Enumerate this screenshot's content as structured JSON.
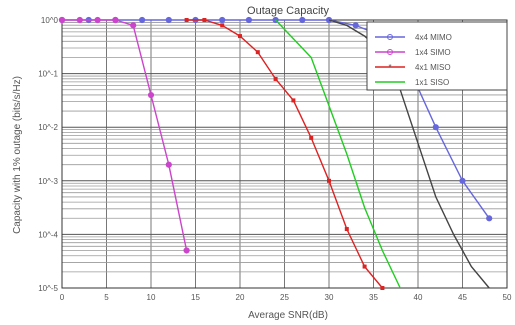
{
  "chart_data": {
    "type": "line",
    "title": "Outage Capacity",
    "xlabel": "Average SNR(dB)",
    "ylabel": "Capacity with 1% outage (bits/s/Hz)",
    "x_ticks": [
      "0",
      "5",
      "10",
      "15",
      "20",
      "25",
      "30",
      "35",
      "40",
      "45",
      "50"
    ],
    "y_ticks": [
      "10^0",
      "10^-1",
      "10^-2",
      "10^-3",
      "10^-4",
      "10^-5"
    ],
    "xlim": [
      0,
      50
    ],
    "ylim": [
      -5,
      0
    ],
    "y_scale": "log",
    "grid": true,
    "legend_position": "top-right",
    "series": [
      {
        "name": "4x4 MIMO",
        "color": "#6666dd",
        "marker": "o",
        "points": [
          [
            0,
            0
          ],
          [
            3,
            0
          ],
          [
            6,
            0
          ],
          [
            9,
            0
          ],
          [
            12,
            0
          ],
          [
            15,
            0
          ],
          [
            18,
            0
          ],
          [
            21,
            0
          ],
          [
            24,
            0
          ],
          [
            27,
            0
          ],
          [
            30,
            0
          ],
          [
            33,
            -0.1
          ],
          [
            36,
            -0.3
          ],
          [
            39,
            -0.9
          ],
          [
            42,
            -2.0
          ],
          [
            45,
            -3.0
          ],
          [
            48,
            -3.7
          ]
        ]
      },
      {
        "name": "1x4 SIMO",
        "color": "#cc44cc",
        "marker": "o",
        "points": [
          [
            0,
            0
          ],
          [
            2,
            0
          ],
          [
            4,
            0
          ],
          [
            6,
            0
          ],
          [
            8,
            -0.1
          ],
          [
            10,
            -1.4
          ],
          [
            12,
            -2.7
          ],
          [
            14,
            -4.3
          ]
        ]
      },
      {
        "name": "4x1 MISO",
        "color": "#dd2222",
        "marker": "*",
        "points": [
          [
            14,
            0
          ],
          [
            16,
            0
          ],
          [
            18,
            -0.1
          ],
          [
            20,
            -0.3
          ],
          [
            22,
            -0.6
          ],
          [
            24,
            -1.1
          ],
          [
            26,
            -1.5
          ],
          [
            28,
            -2.2
          ],
          [
            30,
            -3.0
          ],
          [
            32,
            -3.9
          ],
          [
            34,
            -4.6
          ],
          [
            36,
            -5.0
          ]
        ]
      },
      {
        "name": "1x1 SISO",
        "color": "#22cc22",
        "marker": "none",
        "points": [
          [
            24,
            0
          ],
          [
            28,
            -0.7
          ],
          [
            30,
            -1.6
          ],
          [
            32,
            -2.5
          ],
          [
            34,
            -3.5
          ],
          [
            36,
            -4.3
          ],
          [
            38,
            -5.0
          ]
        ]
      },
      {
        "name": "",
        "color": "#444444",
        "marker": "none",
        "points": [
          [
            30,
            0
          ],
          [
            32,
            -0.1
          ],
          [
            34,
            -0.3
          ],
          [
            36,
            -0.6
          ],
          [
            38,
            -1.3
          ],
          [
            40,
            -2.3
          ],
          [
            42,
            -3.3
          ],
          [
            44,
            -4.0
          ],
          [
            46,
            -4.6
          ],
          [
            48,
            -5.0
          ]
        ]
      }
    ]
  }
}
